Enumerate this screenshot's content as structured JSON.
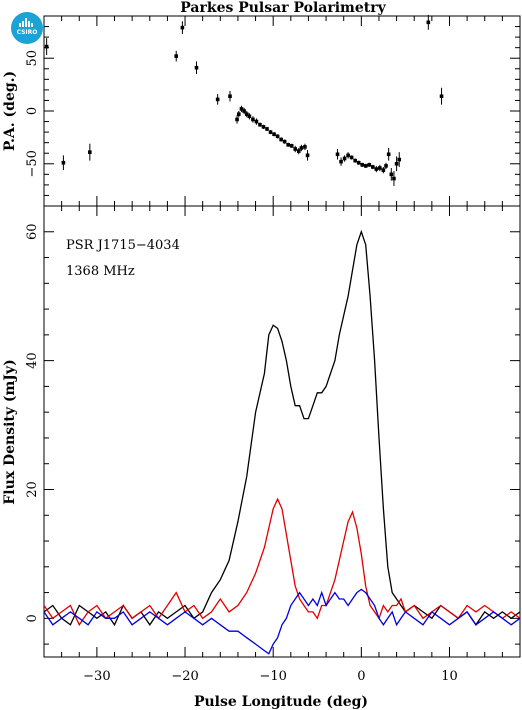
{
  "brand": {
    "logo_text": "CSIRO",
    "logo_color": "#1ba3d6"
  },
  "chart_data": {
    "type": "line",
    "title": "Parkes Pulsar Polarimetry",
    "annotations": [
      "PSR J1715−4034",
      "1368 MHz"
    ],
    "xlabel": "Pulse Longitude (deg)",
    "xlim": [
      -36,
      18
    ],
    "x_ticks": [
      -30,
      -20,
      -10,
      0,
      10
    ],
    "grid": false,
    "panels": [
      {
        "name": "pa",
        "ylabel": "P.A. (deg.)",
        "ylim": [
          -90,
          90
        ],
        "y_ticks": [
          -50,
          0,
          50
        ],
        "points": [
          {
            "x": -35.7,
            "y": 61,
            "err": 8
          },
          {
            "x": -33.8,
            "y": -49,
            "err": 7
          },
          {
            "x": -30.8,
            "y": -39,
            "err": 8
          },
          {
            "x": -21.0,
            "y": 52,
            "err": 5
          },
          {
            "x": -20.3,
            "y": 79,
            "err": 6
          },
          {
            "x": -18.7,
            "y": 41,
            "err": 6
          },
          {
            "x": -16.3,
            "y": 11,
            "err": 5
          },
          {
            "x": -14.9,
            "y": 14,
            "err": 5
          },
          {
            "x": -14.1,
            "y": -8,
            "err": 4
          },
          {
            "x": -13.9,
            "y": -3,
            "err": 3
          },
          {
            "x": -13.6,
            "y": 2,
            "err": 3
          },
          {
            "x": -13.3,
            "y": 0,
            "err": 3
          },
          {
            "x": -13.0,
            "y": -3,
            "err": 3
          },
          {
            "x": -12.7,
            "y": -5,
            "err": 3
          },
          {
            "x": -12.3,
            "y": -8,
            "err": 3
          },
          {
            "x": -11.9,
            "y": -10,
            "err": 3
          },
          {
            "x": -11.5,
            "y": -13,
            "err": 2
          },
          {
            "x": -11.1,
            "y": -15,
            "err": 2
          },
          {
            "x": -10.7,
            "y": -17,
            "err": 2
          },
          {
            "x": -10.3,
            "y": -20,
            "err": 2
          },
          {
            "x": -9.9,
            "y": -22,
            "err": 2
          },
          {
            "x": -9.5,
            "y": -24,
            "err": 2
          },
          {
            "x": -9.1,
            "y": -27,
            "err": 2
          },
          {
            "x": -8.7,
            "y": -29,
            "err": 2
          },
          {
            "x": -8.3,
            "y": -32,
            "err": 2
          },
          {
            "x": -7.9,
            "y": -33,
            "err": 2
          },
          {
            "x": -7.5,
            "y": -36,
            "err": 3
          },
          {
            "x": -7.1,
            "y": -38,
            "err": 3
          },
          {
            "x": -6.8,
            "y": -35,
            "err": 3
          },
          {
            "x": -6.4,
            "y": -34,
            "err": 3
          },
          {
            "x": -6.1,
            "y": -42,
            "err": 5
          },
          {
            "x": -2.7,
            "y": -41,
            "err": 5
          },
          {
            "x": -2.3,
            "y": -48,
            "err": 4
          },
          {
            "x": -1.9,
            "y": -45,
            "err": 3
          },
          {
            "x": -1.5,
            "y": -42,
            "err": 3
          },
          {
            "x": -1.1,
            "y": -44,
            "err": 2
          },
          {
            "x": -0.7,
            "y": -47,
            "err": 2
          },
          {
            "x": -0.3,
            "y": -49,
            "err": 2
          },
          {
            "x": 0.1,
            "y": -51,
            "err": 2
          },
          {
            "x": 0.5,
            "y": -52,
            "err": 2
          },
          {
            "x": 0.9,
            "y": -51,
            "err": 2
          },
          {
            "x": 1.3,
            "y": -53,
            "err": 2
          },
          {
            "x": 1.7,
            "y": -55,
            "err": 3
          },
          {
            "x": 2.1,
            "y": -54,
            "err": 3
          },
          {
            "x": 2.5,
            "y": -56,
            "err": 3
          },
          {
            "x": 2.8,
            "y": -52,
            "err": 3
          },
          {
            "x": 3.1,
            "y": -41,
            "err": 6
          },
          {
            "x": 3.4,
            "y": -60,
            "err": 6
          },
          {
            "x": 3.7,
            "y": -64,
            "err": 7
          },
          {
            "x": 4.0,
            "y": -50,
            "err": 7
          },
          {
            "x": 4.3,
            "y": -46,
            "err": 7
          },
          {
            "x": 7.6,
            "y": 84,
            "err": 7
          },
          {
            "x": 9.1,
            "y": 14,
            "err": 8
          }
        ]
      },
      {
        "name": "flux",
        "ylabel": "Flux Density (mJy)",
        "ylim": [
          -6,
          64
        ],
        "y_ticks": [
          0,
          20,
          40,
          60
        ],
        "series": [
          {
            "color": "#000000",
            "x": [
              -36,
              -35,
              -34,
              -33,
              -32,
              -31,
              -30,
              -29,
              -28,
              -27,
              -26,
              -25,
              -24,
              -23,
              -22,
              -21,
              -20,
              -19,
              -18,
              -17,
              -16,
              -15,
              -14,
              -13,
              -12,
              -11,
              -10.5,
              -10,
              -9.5,
              -9,
              -8.5,
              -8,
              -7.5,
              -7,
              -6.5,
              -6,
              -5.5,
              -5,
              -4.5,
              -4,
              -3.5,
              -3,
              -2.5,
              -2,
              -1.5,
              -1,
              -0.5,
              0,
              0.5,
              1,
              1.5,
              2,
              2.5,
              3,
              3.5,
              4,
              4.5,
              5,
              6,
              7,
              8,
              9,
              10,
              11,
              12,
              13,
              14,
              15,
              16,
              17,
              18
            ],
            "y": [
              1,
              2,
              0,
              -1,
              2,
              1,
              0,
              1,
              -1,
              2,
              0,
              1,
              -1,
              1,
              0,
              1,
              2,
              0,
              1,
              4,
              6,
              9,
              15,
              22,
              32,
              38,
              44,
              45.5,
              45,
              43,
              40,
              36,
              33,
              33,
              31,
              31,
              33,
              35,
              35,
              36,
              38,
              40,
              44,
              47,
              50,
              54,
              58,
              60,
              58,
              50,
              40,
              28,
              17,
              8,
              4,
              3,
              2,
              1,
              2,
              1,
              0,
              2,
              1,
              0,
              1,
              -1,
              1,
              0,
              1,
              0,
              1
            ]
          },
          {
            "color": "#e00000",
            "x": [
              -36,
              -35,
              -34,
              -33,
              -32,
              -31,
              -30,
              -29,
              -28,
              -27,
              -26,
              -25,
              -24,
              -23,
              -22,
              -21,
              -20,
              -19,
              -18,
              -17,
              -16,
              -15,
              -14,
              -13,
              -12,
              -11,
              -10.5,
              -10,
              -9.5,
              -9,
              -8.5,
              -8,
              -7.5,
              -7,
              -6.5,
              -6,
              -5.5,
              -5,
              -4.5,
              -4,
              -3.5,
              -3,
              -2.5,
              -2,
              -1.5,
              -1,
              -0.5,
              0,
              0.5,
              1,
              1.5,
              2,
              2.5,
              3,
              3.5,
              4,
              4.5,
              5,
              6,
              7,
              8,
              9,
              10,
              11,
              12,
              13,
              14,
              15,
              16,
              17,
              18
            ],
            "y": [
              2,
              0,
              1,
              2,
              -1,
              1,
              2,
              0,
              1,
              2,
              0,
              1,
              2,
              0,
              2,
              4,
              1,
              2,
              0,
              1,
              3,
              1,
              2,
              4,
              7,
              11,
              14,
              17,
              18.5,
              17,
              13,
              9,
              5,
              3,
              2,
              1,
              1,
              0,
              2,
              2,
              4,
              6,
              9,
              12,
              15,
              16.5,
              14,
              10,
              5,
              2,
              1,
              0,
              2,
              1,
              2,
              2,
              3,
              1,
              2,
              0,
              1,
              2,
              1,
              0,
              2,
              1,
              2,
              1,
              0,
              1,
              0
            ]
          },
          {
            "color": "#0000e0",
            "x": [
              -36,
              -35,
              -34,
              -33,
              -32,
              -31,
              -30,
              -29,
              -28,
              -27,
              -26,
              -25,
              -24,
              -23,
              -22,
              -21,
              -20,
              -19,
              -18,
              -17,
              -16,
              -15,
              -14,
              -13,
              -12,
              -11,
              -10.5,
              -10,
              -9.5,
              -9,
              -8.5,
              -8,
              -7.5,
              -7,
              -6.5,
              -6,
              -5.5,
              -5,
              -4.5,
              -4,
              -3.5,
              -3,
              -2.5,
              -2,
              -1.5,
              -1,
              -0.5,
              0,
              0.5,
              1,
              1.5,
              2,
              2.5,
              3,
              3.5,
              4,
              4.5,
              5,
              6,
              7,
              8,
              9,
              10,
              11,
              12,
              13,
              14,
              15,
              16,
              17,
              18
            ],
            "y": [
              1,
              -1,
              0,
              1,
              0,
              -1,
              1,
              0,
              0,
              1,
              -1,
              0,
              1,
              0,
              -1,
              0,
              1,
              0,
              -1,
              0,
              -1,
              -2,
              -2,
              -3,
              -4,
              -5,
              -5.5,
              -4,
              -3,
              -1,
              0,
              2,
              3,
              4,
              3,
              2,
              3,
              2,
              4,
              2,
              3,
              4,
              3,
              3,
              2,
              3,
              4,
              4.5,
              4,
              3,
              2,
              0,
              -1,
              0,
              1,
              -1,
              0,
              1,
              0,
              -1,
              1,
              0,
              -1,
              0,
              1,
              -1,
              0,
              1,
              0,
              -1,
              0
            ]
          }
        ]
      }
    ]
  }
}
